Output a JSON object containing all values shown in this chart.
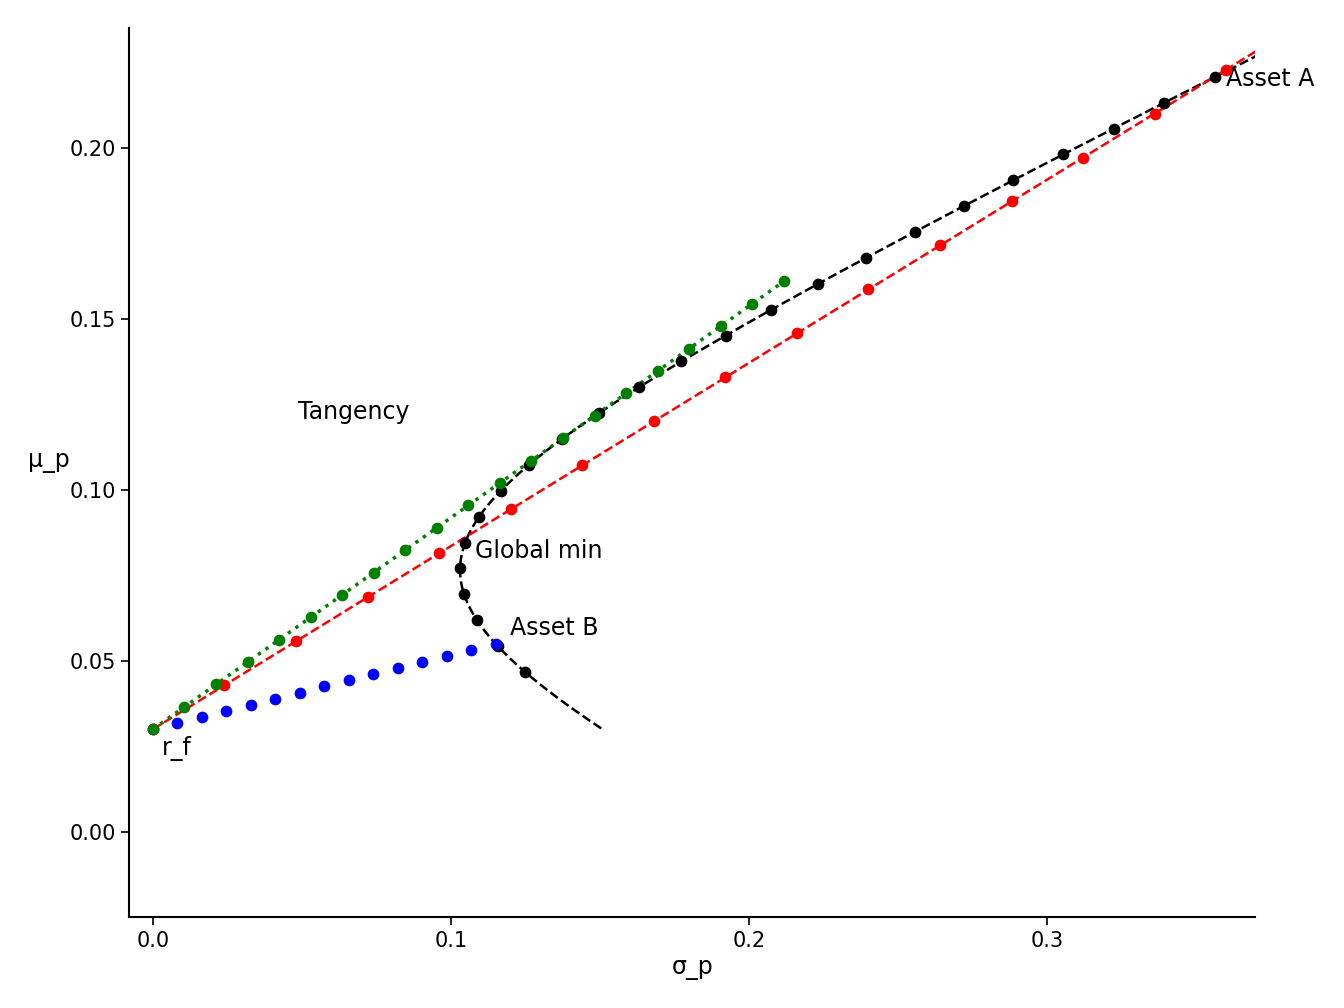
{
  "mu_A": 0.22,
  "mu_B": 0.055,
  "sigma_A": 0.355,
  "sigma_B": 0.115,
  "rho_AB": -0.164,
  "rf": 0.03,
  "xlim": [
    -0.008,
    0.37
  ],
  "ylim": [
    -0.025,
    0.235
  ],
  "xlabel": "σ_p",
  "ylabel": "μ_p",
  "annotation_rf": "r_f",
  "annotation_tangency": "Tangency",
  "annotation_global_min": "Global min",
  "annotation_asset_a": "Asset A",
  "annotation_asset_b": "Asset B",
  "color_AB": "black",
  "color_tbill_B": "blue",
  "color_tbill_A": "red",
  "color_tangency": "green",
  "dot_size": 55,
  "n_AB": 25,
  "n_tbB": 15,
  "n_tbA": 18,
  "n_cml": 21,
  "label_fontsize": 17,
  "tick_fontsize": 15
}
